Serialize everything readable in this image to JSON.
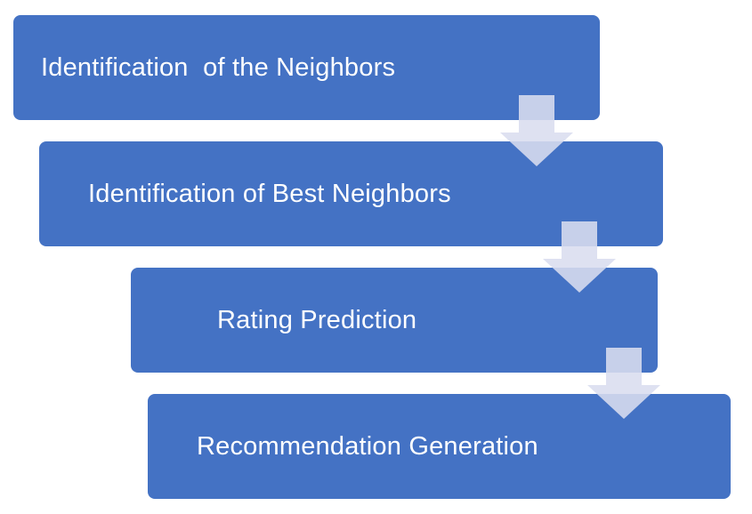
{
  "colors": {
    "box_fill": "#4472c4",
    "text": "#ffffff",
    "arrow_fill": "#d9ddef"
  },
  "icons": {
    "connector": "arrow-down-icon"
  },
  "steps": [
    {
      "label": "Identification  of the Neighbors"
    },
    {
      "label": "Identification of Best Neighbors"
    },
    {
      "label": "Rating Prediction"
    },
    {
      "label": "Recommendation Generation"
    }
  ]
}
